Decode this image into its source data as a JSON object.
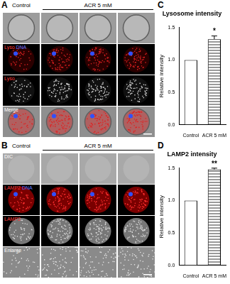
{
  "figure": {
    "panels": [
      {
        "panel_label": "A",
        "column_headers": [
          {
            "text": "Control",
            "columns": 1
          },
          {
            "text": "ACR 5 mM",
            "columns": 3
          }
        ],
        "rows": [
          {
            "label": []
          },
          {
            "label": [
              {
                "text": "Lyso",
                "color": "#ff3b3b"
              },
              {
                "text": "DNA",
                "color": "#5a78ff"
              }
            ]
          },
          {
            "label": [
              {
                "text": "Lyso",
                "color": "#ff3b3b"
              }
            ]
          },
          {
            "label": [
              {
                "text": "Merge",
                "color": "#ffffff"
              }
            ]
          }
        ]
      },
      {
        "panel_label": "B",
        "column_headers": [
          {
            "text": "Control",
            "columns": 1
          },
          {
            "text": "ACR 5 mM",
            "columns": 3
          }
        ],
        "rows": [
          {
            "label": [
              {
                "text": "DIC",
                "color": "#ffffff"
              }
            ]
          },
          {
            "label": [
              {
                "text": "LAMP2",
                "color": "#ff3b3b"
              },
              {
                "text": "DNA",
                "color": "#5a78ff"
              }
            ]
          },
          {
            "label": [
              {
                "text": "LAMP2",
                "color": "#ff3b3b"
              }
            ]
          },
          {
            "label": [
              {
                "text": "Enlarge",
                "color": "#ffffff"
              }
            ]
          }
        ]
      }
    ]
  },
  "chart_data": [
    {
      "panel_label": "C",
      "type": "bar",
      "title": "Lysosome intensity",
      "y_label": "Relative intensity",
      "categories": [
        "Control",
        "ACR 5 mM"
      ],
      "values": [
        1.0,
        1.32
      ],
      "errors": [
        0,
        0.05
      ],
      "annotations": [
        {
          "category": "ACR 5 mM",
          "text": "*"
        }
      ],
      "colors": [
        "#ffffff",
        "#9a9a9a"
      ],
      "ylim": [
        0,
        1.5
      ],
      "yticks": [
        {
          "value": 0,
          "label": "0.0"
        },
        0.5,
        {
          "value": 1,
          "label": "1.0"
        },
        1.5
      ],
      "grid": false
    },
    {
      "panel_label": "D",
      "type": "bar",
      "title": "LAMP2 intensity",
      "y_label": "Relative intensity",
      "categories": [
        "Control",
        "ACR 5 mM"
      ],
      "values": [
        1.0,
        1.48
      ],
      "errors": [
        0,
        0.02
      ],
      "annotations": [
        {
          "category": "ACR 5 mM",
          "text": "**"
        }
      ],
      "colors": [
        "#ffffff",
        "#9a9a9a"
      ],
      "ylim": [
        0,
        1.5
      ],
      "yticks": [
        {
          "value": 0,
          "label": "0.0"
        },
        0.5,
        {
          "value": 1,
          "label": "1.0"
        },
        1.5
      ],
      "grid": false
    }
  ]
}
